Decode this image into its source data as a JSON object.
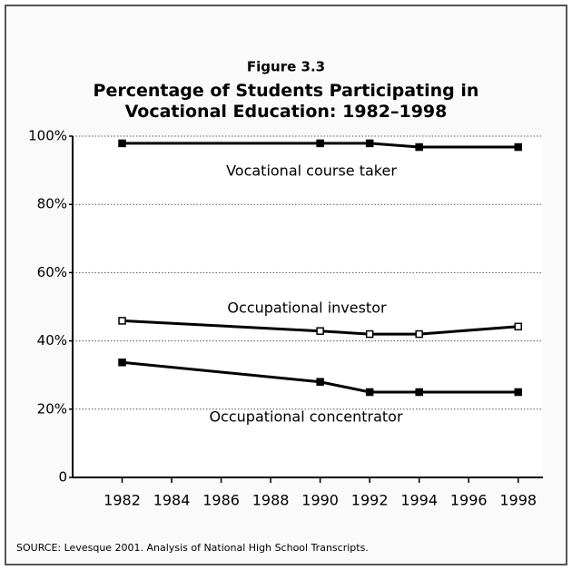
{
  "chart_data": {
    "type": "line",
    "figure_label": "Figure 3.3",
    "title": "Percentage of Students Participating in Vocational Education: 1982–1998",
    "source": "SOURCE: Levesque 2001. Analysis of National High School Transcripts.",
    "x": [
      1982,
      1990,
      1992,
      1994,
      1998
    ],
    "series": [
      {
        "name": "Vocational course taker",
        "color": "#000000",
        "marker_fill": "#000000",
        "values": [
          97.9,
          97.9,
          97.9,
          96.8,
          96.8
        ]
      },
      {
        "name": "Occupational investor",
        "color": "#000000",
        "marker_fill": "#ffffff",
        "values": [
          45.9,
          42.9,
          42.0,
          42.0,
          44.2
        ]
      },
      {
        "name": "Occupational concentrator",
        "color": "#000000",
        "marker_fill": "#000000",
        "values": [
          33.7,
          28.0,
          25.0,
          25.0,
          25.0
        ]
      }
    ],
    "xlim": [
      1980,
      1999
    ],
    "xticks": [
      1982,
      1984,
      1986,
      1988,
      1990,
      1992,
      1994,
      1996,
      1998
    ],
    "ylim": [
      0,
      100
    ],
    "yticks": [
      0,
      {
        "value": 20,
        "label": "20%"
      },
      {
        "value": 40,
        "label": "40%"
      },
      {
        "value": 60,
        "label": "60%"
      },
      {
        "value": 80,
        "label": "80%"
      },
      {
        "value": 100,
        "label": "100%"
      }
    ],
    "grid": true
  }
}
